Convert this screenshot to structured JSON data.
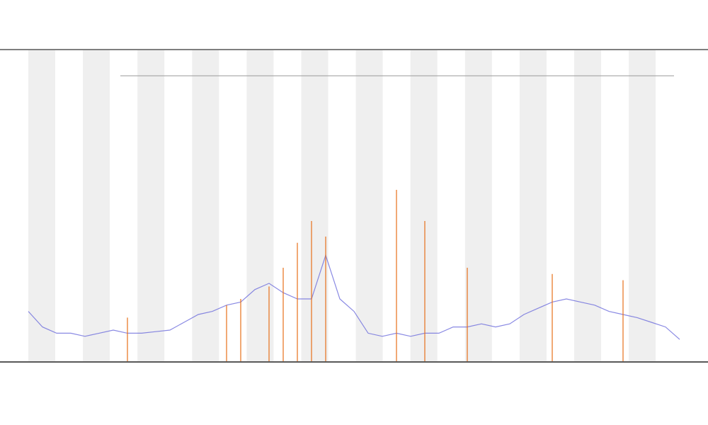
{
  "chart_data": {
    "type": "line",
    "x": [
      0,
      1,
      2,
      3,
      4,
      5,
      6,
      7,
      8,
      9,
      10,
      11,
      12,
      13,
      14,
      15,
      16,
      17,
      18,
      19,
      20,
      21,
      22,
      23,
      24,
      25,
      26,
      27,
      28,
      29,
      30,
      31,
      32,
      33,
      34,
      35,
      36,
      37,
      38,
      39,
      40,
      41,
      42,
      43,
      44,
      45,
      46
    ],
    "xlim": [
      0,
      46
    ],
    "ylim": [
      0,
      100
    ],
    "series": [
      {
        "color": "#6b6bdc",
        "values": [
          16,
          11,
          9,
          9,
          8,
          9,
          10,
          9,
          9,
          9.5,
          10,
          12.5,
          15,
          16,
          18,
          19,
          23,
          25,
          22,
          20,
          20,
          34,
          20,
          16,
          9,
          8,
          9,
          8,
          9,
          9,
          11,
          11,
          12,
          11,
          12,
          15,
          17,
          19,
          20,
          19,
          18,
          16,
          15,
          14,
          12.5,
          11,
          7
        ]
      },
      {
        "color": "#e8701a",
        "spikes": true,
        "values": [
          null,
          null,
          null,
          null,
          null,
          null,
          null,
          14,
          null,
          null,
          null,
          null,
          null,
          null,
          18,
          20,
          null,
          24,
          30,
          38,
          45,
          40,
          null,
          null,
          null,
          null,
          55,
          null,
          45,
          null,
          null,
          30,
          null,
          null,
          null,
          null,
          null,
          28,
          null,
          null,
          null,
          null,
          26,
          null,
          null,
          null,
          null
        ]
      }
    ]
  }
}
